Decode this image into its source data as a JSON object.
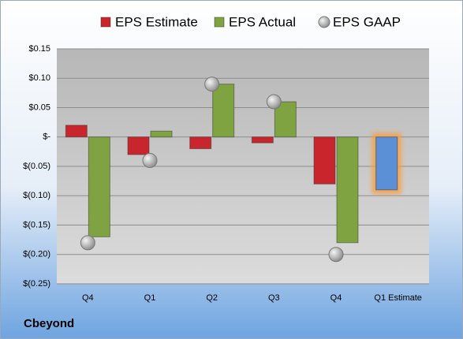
{
  "chart_data": {
    "type": "bar",
    "categories": [
      "Q4",
      "Q1",
      "Q2",
      "Q3",
      "Q4",
      "Q1 Estimate"
    ],
    "series": [
      {
        "name": "EPS Estimate",
        "color": "#c8262c",
        "point_colors": [
          "#c8262c",
          "#c8262c",
          "#c8262c",
          "#c8262c",
          "#c8262c",
          "#5b8fd6"
        ],
        "values": [
          0.02,
          -0.03,
          -0.02,
          -0.01,
          -0.08,
          -0.09
        ]
      },
      {
        "name": "EPS Actual",
        "color": "#7ea340",
        "values": [
          -0.17,
          0.01,
          0.09,
          0.06,
          -0.18,
          null
        ]
      },
      {
        "name": "EPS GAAP",
        "color": "#a6a6a6",
        "marker": "circle",
        "values": [
          -0.18,
          -0.04,
          0.09,
          0.06,
          -0.2,
          null
        ]
      }
    ],
    "ylim": [
      -0.25,
      0.15
    ],
    "yticks": [
      {
        "value": 0.15,
        "label": "$0.15"
      },
      {
        "value": 0.1,
        "label": "$0.10"
      },
      {
        "value": 0.05,
        "label": "$0.05"
      },
      {
        "value": 0,
        "label": "$-"
      },
      {
        "value": -0.05,
        "label": "$(0.05)"
      },
      {
        "value": -0.1,
        "label": "$(0.10)"
      },
      {
        "value": -0.15,
        "label": "$(0.15)"
      },
      {
        "value": -0.2,
        "label": "$(0.20)"
      },
      {
        "value": -0.25,
        "label": "$(0.25)"
      }
    ],
    "grid": true,
    "legend": "top",
    "company": "Cbeyond"
  }
}
